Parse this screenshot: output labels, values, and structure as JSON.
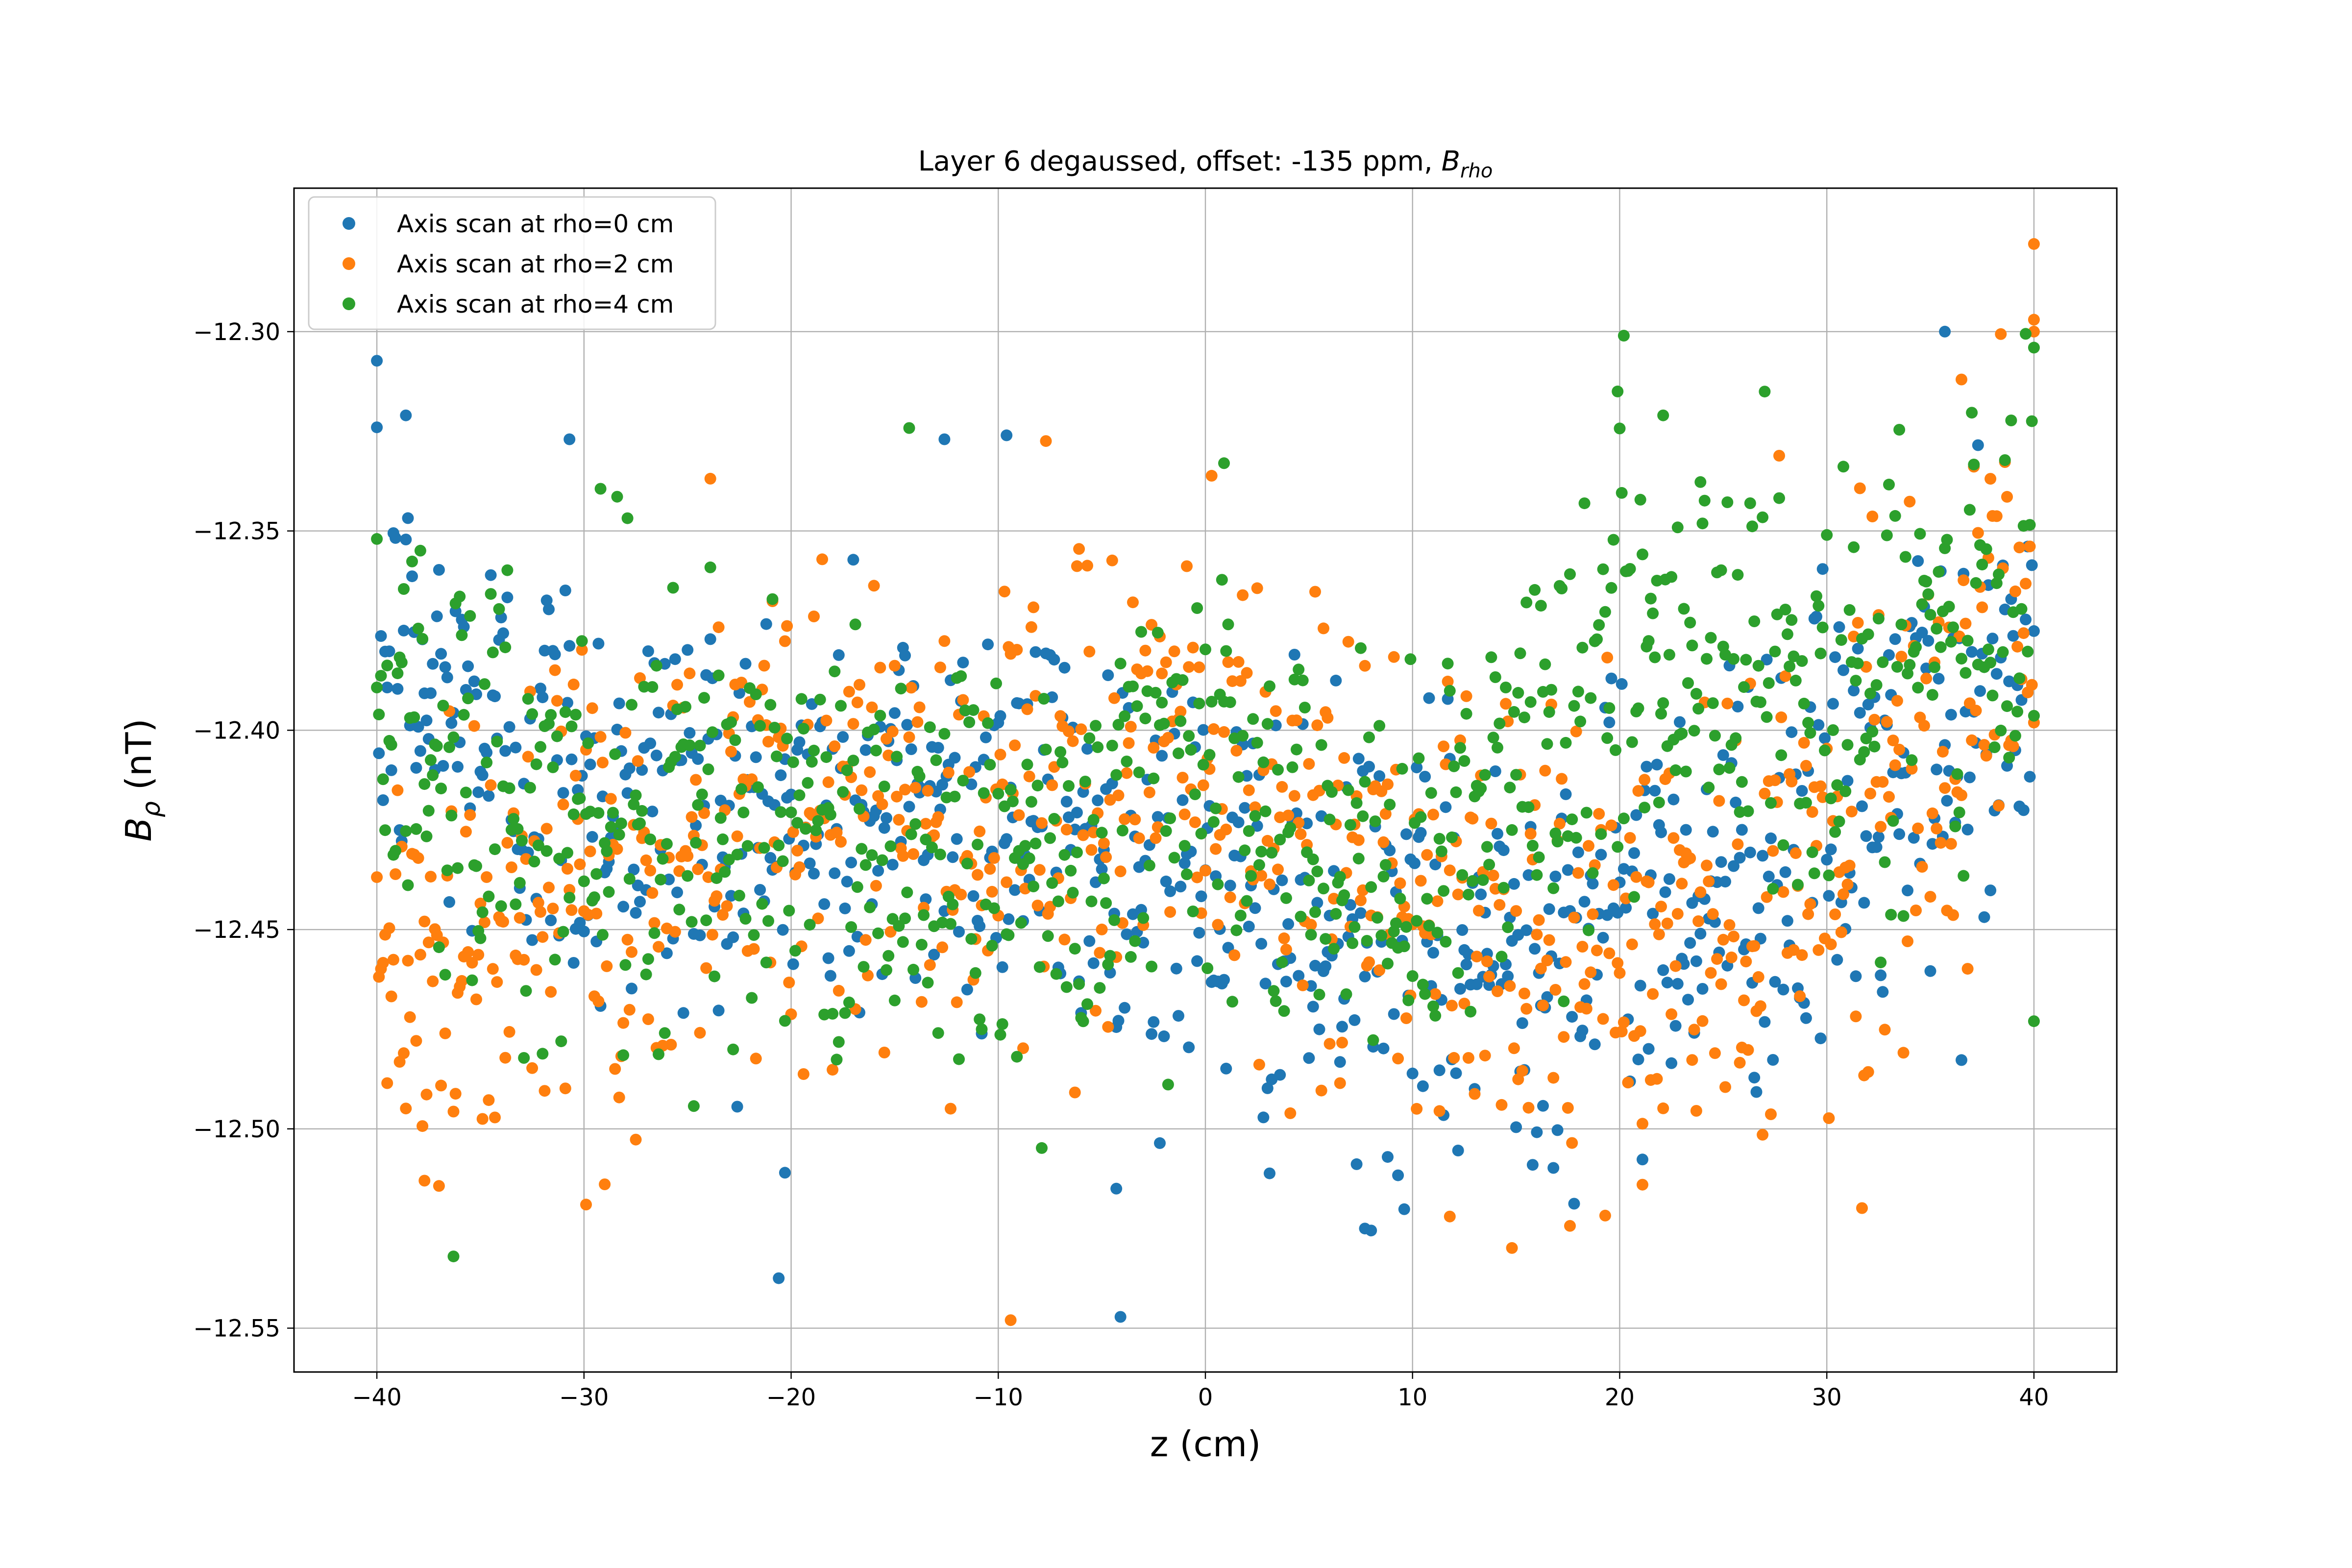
{
  "chart_data": {
    "type": "scatter",
    "title": "Layer 6 degaussed, offset: -135 ppm, ",
    "title_math": "B",
    "title_math_sub": "rho",
    "xlabel": "z (cm)",
    "ylabel_main": "B",
    "ylabel_sub": "ρ",
    "ylabel_unit": " (nT)",
    "xlim": [
      -44,
      44
    ],
    "ylim": [
      -12.561,
      -12.264
    ],
    "xticks": [
      -40,
      -30,
      -20,
      -10,
      0,
      10,
      20,
      30,
      40
    ],
    "xtick_labels": [
      "−40",
      "−30",
      "−20",
      "−10",
      "0",
      "10",
      "20",
      "30",
      "40"
    ],
    "yticks": [
      -12.3,
      -12.35,
      -12.4,
      -12.45,
      -12.5,
      -12.55
    ],
    "ytick_labels": [
      "−12.30",
      "−12.35",
      "−12.40",
      "−12.45",
      "−12.50",
      "−12.55"
    ],
    "grid": true,
    "legend_position": "top-left",
    "z_samples": 801,
    "series": [
      {
        "name": "Axis scan at rho=0 cm",
        "color": "#1f77b4",
        "trend": [
          [
            -40,
            -12.385
          ],
          [
            -30,
            -12.415
          ],
          [
            -20,
            -12.425
          ],
          [
            -10,
            -12.415
          ],
          [
            0,
            -12.44
          ],
          [
            10,
            -12.46
          ],
          [
            20,
            -12.445
          ],
          [
            30,
            -12.425
          ],
          [
            40,
            -12.39
          ]
        ],
        "spread": 0.028,
        "highlights": [
          {
            "x": -40,
            "y": -12.324
          },
          {
            "x": -38.6,
            "y": -12.321
          },
          {
            "x": -30.7,
            "y": -12.327
          },
          {
            "x": -12.6,
            "y": -12.327
          },
          {
            "x": -9.6,
            "y": -12.326
          },
          {
            "x": 35.7,
            "y": -12.3
          },
          {
            "x": 7.7,
            "y": -12.525
          },
          {
            "x": -20.3,
            "y": -12.511
          },
          {
            "x": -4.3,
            "y": -12.515
          }
        ]
      },
      {
        "name": "Axis scan at rho=2 cm",
        "color": "#ff7f0e",
        "trend": [
          [
            -40,
            -12.455
          ],
          [
            -30,
            -12.45
          ],
          [
            -20,
            -12.415
          ],
          [
            -10,
            -12.425
          ],
          [
            0,
            -12.405
          ],
          [
            10,
            -12.445
          ],
          [
            20,
            -12.46
          ],
          [
            30,
            -12.43
          ],
          [
            40,
            -12.37
          ]
        ],
        "spread": 0.03,
        "highlights": [
          {
            "x": -9.4,
            "y": -12.548
          },
          {
            "x": -29.9,
            "y": -12.519
          },
          {
            "x": -37.7,
            "y": -12.513
          },
          {
            "x": 11.8,
            "y": -12.522
          },
          {
            "x": 40,
            "y": -12.278
          },
          {
            "x": 40,
            "y": -12.297
          },
          {
            "x": 40,
            "y": -12.3
          },
          {
            "x": 36.5,
            "y": -12.312
          },
          {
            "x": 21.1,
            "y": -12.514
          }
        ]
      },
      {
        "name": "Axis scan at rho=4 cm",
        "color": "#2ca02c",
        "trend": [
          [
            -40,
            -12.4
          ],
          [
            -30,
            -12.425
          ],
          [
            -20,
            -12.42
          ],
          [
            -10,
            -12.435
          ],
          [
            0,
            -12.42
          ],
          [
            10,
            -12.44
          ],
          [
            15,
            -12.41
          ],
          [
            20,
            -12.38
          ],
          [
            30,
            -12.395
          ],
          [
            40,
            -12.36
          ]
        ],
        "spread": 0.028,
        "highlights": [
          {
            "x": -36.3,
            "y": -12.532
          },
          {
            "x": 20.2,
            "y": -12.301
          },
          {
            "x": 40,
            "y": -12.304
          },
          {
            "x": 0.9,
            "y": -12.333
          },
          {
            "x": 19.9,
            "y": -12.315
          },
          {
            "x": 40,
            "y": -12.473
          },
          {
            "x": -40,
            "y": -12.352
          },
          {
            "x": 22.1,
            "y": -12.321
          }
        ]
      }
    ]
  }
}
